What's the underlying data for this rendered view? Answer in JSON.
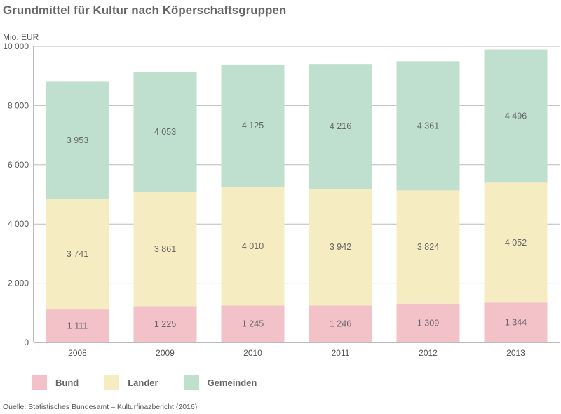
{
  "chart_data": {
    "type": "bar",
    "stacked": true,
    "title": "Grundmittel für Kultur nach Köperschaftsgruppen",
    "ylabel": "Mio. EUR",
    "ylim": [
      0,
      10000
    ],
    "yticks": [
      0,
      2000,
      4000,
      6000,
      8000,
      10000
    ],
    "ytick_labels": [
      "0",
      "2 000",
      "4 000",
      "6 000",
      "8 000",
      "10 000"
    ],
    "grid": true,
    "categories": [
      "2008",
      "2009",
      "2010",
      "2011",
      "2012",
      "2013"
    ],
    "series": [
      {
        "name": "Bund",
        "color": "#f2c2c8",
        "values": [
          1111,
          1225,
          1245,
          1246,
          1309,
          1344
        ],
        "labels": [
          "1 111",
          "1 225",
          "1 245",
          "1 246",
          "1 309",
          "1 344"
        ]
      },
      {
        "name": "Länder",
        "color": "#f5ecc1",
        "values": [
          3741,
          3861,
          4010,
          3942,
          3824,
          4052
        ],
        "labels": [
          "3 741",
          "3 861",
          "4 010",
          "3 942",
          "3 824",
          "4 052"
        ]
      },
      {
        "name": "Gemeinden",
        "color": "#bfdfcf",
        "values": [
          3953,
          4053,
          4125,
          4216,
          4361,
          4496
        ],
        "labels": [
          "3 953",
          "4 053",
          "4 125",
          "4 216",
          "4 361",
          "4 496"
        ]
      }
    ],
    "legend_position": "bottom-left",
    "source": "Quelle: Statistisches Bundesamt – Kulturfinazbericht (2016)"
  }
}
